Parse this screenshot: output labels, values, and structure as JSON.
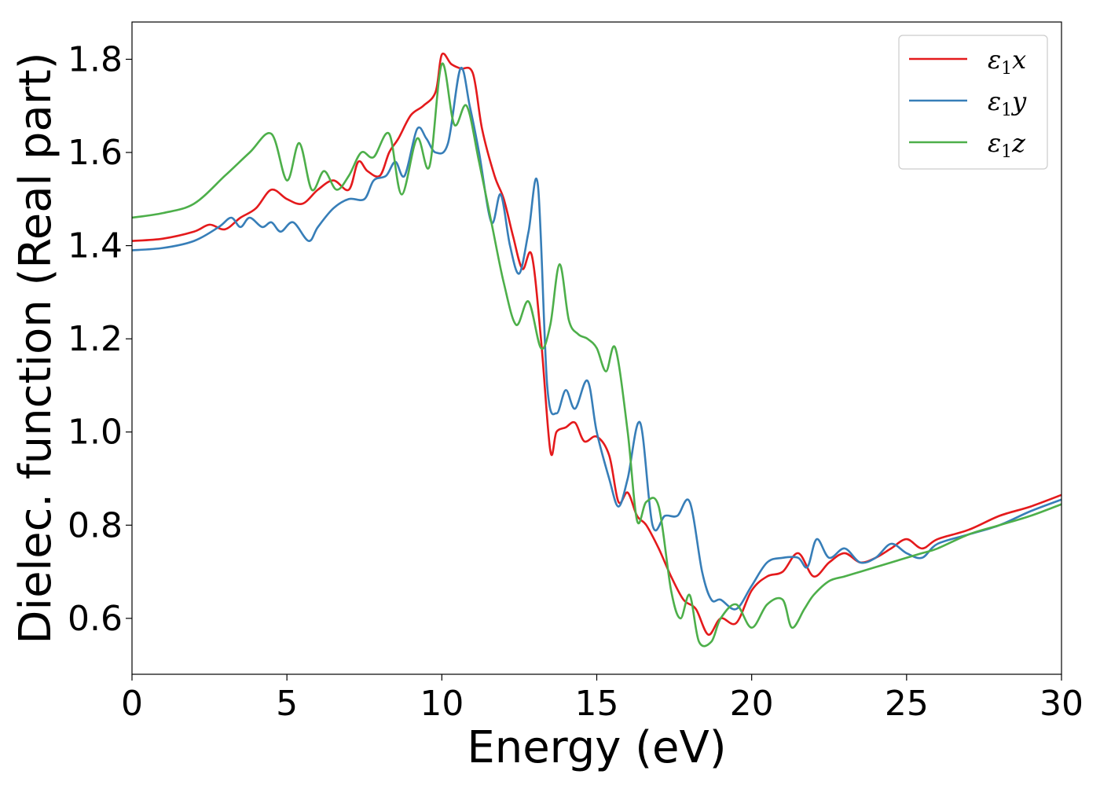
{
  "chart_data": {
    "type": "line",
    "xlabel": "Energy (eV)",
    "ylabel": "Dielec. function (Real part)",
    "xlim": [
      0,
      30
    ],
    "ylim": [
      0.48,
      1.88
    ],
    "xticks": [
      0,
      5,
      10,
      15,
      20,
      25,
      30
    ],
    "xtick_labels": [
      "0",
      "5",
      "10",
      "15",
      "20",
      "25",
      "30"
    ],
    "yticks": [
      0.6,
      0.8,
      1.0,
      1.2,
      1.4,
      1.6,
      1.8
    ],
    "ytick_labels": [
      "0.6",
      "0.8",
      "1.0",
      "1.2",
      "1.4",
      "1.6",
      "1.8"
    ],
    "grid": false,
    "legend_position": "top-right",
    "series": [
      {
        "name": "ε₁x",
        "legend_main": "ε",
        "legend_sub": "1",
        "legend_suffix": "x",
        "color": "#e41a1c",
        "points": [
          [
            0,
            1.41
          ],
          [
            1,
            1.415
          ],
          [
            2,
            1.43
          ],
          [
            2.5,
            1.445
          ],
          [
            3,
            1.435
          ],
          [
            3.5,
            1.46
          ],
          [
            4,
            1.48
          ],
          [
            4.5,
            1.52
          ],
          [
            5,
            1.5
          ],
          [
            5.5,
            1.49
          ],
          [
            6,
            1.52
          ],
          [
            6.5,
            1.54
          ],
          [
            7,
            1.52
          ],
          [
            7.3,
            1.58
          ],
          [
            7.6,
            1.56
          ],
          [
            8,
            1.55
          ],
          [
            8.3,
            1.6
          ],
          [
            8.6,
            1.63
          ],
          [
            9,
            1.68
          ],
          [
            9.4,
            1.7
          ],
          [
            9.8,
            1.73
          ],
          [
            10,
            1.81
          ],
          [
            10.3,
            1.79
          ],
          [
            10.6,
            1.78
          ],
          [
            11,
            1.77
          ],
          [
            11.3,
            1.65
          ],
          [
            11.7,
            1.55
          ],
          [
            12,
            1.5
          ],
          [
            12.3,
            1.42
          ],
          [
            12.6,
            1.35
          ],
          [
            12.9,
            1.38
          ],
          [
            13.2,
            1.2
          ],
          [
            13.5,
            0.96
          ],
          [
            13.7,
            1.0
          ],
          [
            14,
            1.01
          ],
          [
            14.3,
            1.02
          ],
          [
            14.6,
            0.98
          ],
          [
            15,
            0.99
          ],
          [
            15.4,
            0.95
          ],
          [
            15.7,
            0.85
          ],
          [
            16,
            0.87
          ],
          [
            16.3,
            0.82
          ],
          [
            16.6,
            0.8
          ],
          [
            17,
            0.75
          ],
          [
            17.4,
            0.69
          ],
          [
            17.8,
            0.64
          ],
          [
            18.2,
            0.62
          ],
          [
            18.6,
            0.565
          ],
          [
            19,
            0.6
          ],
          [
            19.5,
            0.59
          ],
          [
            20,
            0.66
          ],
          [
            20.5,
            0.69
          ],
          [
            21,
            0.7
          ],
          [
            21.5,
            0.74
          ],
          [
            22,
            0.69
          ],
          [
            22.5,
            0.72
          ],
          [
            23,
            0.74
          ],
          [
            23.5,
            0.72
          ],
          [
            24,
            0.73
          ],
          [
            24.5,
            0.75
          ],
          [
            25,
            0.77
          ],
          [
            25.5,
            0.75
          ],
          [
            26,
            0.77
          ],
          [
            27,
            0.79
          ],
          [
            28,
            0.82
          ],
          [
            29,
            0.84
          ],
          [
            30,
            0.865
          ]
        ]
      },
      {
        "name": "ε₁y",
        "legend_main": "ε",
        "legend_sub": "1",
        "legend_suffix": "y",
        "color": "#377eb8",
        "points": [
          [
            0,
            1.39
          ],
          [
            1,
            1.395
          ],
          [
            2,
            1.41
          ],
          [
            2.8,
            1.44
          ],
          [
            3.2,
            1.46
          ],
          [
            3.5,
            1.44
          ],
          [
            3.8,
            1.46
          ],
          [
            4.2,
            1.44
          ],
          [
            4.5,
            1.45
          ],
          [
            4.8,
            1.43
          ],
          [
            5.2,
            1.45
          ],
          [
            5.7,
            1.41
          ],
          [
            6,
            1.44
          ],
          [
            6.5,
            1.48
          ],
          [
            7,
            1.5
          ],
          [
            7.5,
            1.5
          ],
          [
            7.8,
            1.54
          ],
          [
            8.2,
            1.55
          ],
          [
            8.5,
            1.58
          ],
          [
            8.8,
            1.55
          ],
          [
            9.2,
            1.65
          ],
          [
            9.5,
            1.63
          ],
          [
            9.8,
            1.6
          ],
          [
            10.2,
            1.62
          ],
          [
            10.6,
            1.78
          ],
          [
            10.9,
            1.7
          ],
          [
            11.2,
            1.6
          ],
          [
            11.6,
            1.45
          ],
          [
            11.9,
            1.51
          ],
          [
            12.2,
            1.4
          ],
          [
            12.5,
            1.34
          ],
          [
            12.8,
            1.43
          ],
          [
            13.1,
            1.53
          ],
          [
            13.4,
            1.1
          ],
          [
            13.7,
            1.04
          ],
          [
            14,
            1.09
          ],
          [
            14.3,
            1.05
          ],
          [
            14.7,
            1.11
          ],
          [
            15,
            1.0
          ],
          [
            15.4,
            0.9
          ],
          [
            15.7,
            0.84
          ],
          [
            16,
            0.9
          ],
          [
            16.4,
            1.02
          ],
          [
            16.8,
            0.8
          ],
          [
            17.2,
            0.82
          ],
          [
            17.6,
            0.82
          ],
          [
            18,
            0.85
          ],
          [
            18.4,
            0.7
          ],
          [
            18.7,
            0.64
          ],
          [
            19,
            0.64
          ],
          [
            19.5,
            0.62
          ],
          [
            20,
            0.67
          ],
          [
            20.5,
            0.72
          ],
          [
            21,
            0.73
          ],
          [
            21.5,
            0.73
          ],
          [
            21.8,
            0.71
          ],
          [
            22.1,
            0.77
          ],
          [
            22.5,
            0.73
          ],
          [
            23,
            0.75
          ],
          [
            23.5,
            0.72
          ],
          [
            24,
            0.73
          ],
          [
            24.5,
            0.76
          ],
          [
            25,
            0.74
          ],
          [
            25.5,
            0.73
          ],
          [
            26,
            0.76
          ],
          [
            27,
            0.78
          ],
          [
            28,
            0.8
          ],
          [
            29,
            0.83
          ],
          [
            30,
            0.855
          ]
        ]
      },
      {
        "name": "ε₁z",
        "legend_main": "ε",
        "legend_sub": "1",
        "legend_suffix": "z",
        "color": "#4daf4a",
        "points": [
          [
            0,
            1.46
          ],
          [
            1,
            1.47
          ],
          [
            2,
            1.49
          ],
          [
            3,
            1.55
          ],
          [
            3.8,
            1.6
          ],
          [
            4.5,
            1.64
          ],
          [
            5,
            1.54
          ],
          [
            5.4,
            1.62
          ],
          [
            5.8,
            1.52
          ],
          [
            6.2,
            1.56
          ],
          [
            6.6,
            1.52
          ],
          [
            7,
            1.55
          ],
          [
            7.4,
            1.6
          ],
          [
            7.8,
            1.59
          ],
          [
            8.3,
            1.64
          ],
          [
            8.7,
            1.51
          ],
          [
            9.2,
            1.63
          ],
          [
            9.6,
            1.57
          ],
          [
            10,
            1.79
          ],
          [
            10.4,
            1.66
          ],
          [
            10.8,
            1.7
          ],
          [
            11.2,
            1.58
          ],
          [
            11.6,
            1.45
          ],
          [
            12,
            1.32
          ],
          [
            12.4,
            1.23
          ],
          [
            12.8,
            1.28
          ],
          [
            13.2,
            1.18
          ],
          [
            13.5,
            1.23
          ],
          [
            13.8,
            1.36
          ],
          [
            14.1,
            1.24
          ],
          [
            14.4,
            1.21
          ],
          [
            14.7,
            1.2
          ],
          [
            15,
            1.18
          ],
          [
            15.3,
            1.13
          ],
          [
            15.6,
            1.18
          ],
          [
            16,
            1.0
          ],
          [
            16.3,
            0.81
          ],
          [
            16.6,
            0.85
          ],
          [
            17,
            0.84
          ],
          [
            17.4,
            0.66
          ],
          [
            17.7,
            0.6
          ],
          [
            18,
            0.65
          ],
          [
            18.3,
            0.55
          ],
          [
            18.7,
            0.55
          ],
          [
            19,
            0.6
          ],
          [
            19.5,
            0.63
          ],
          [
            20,
            0.58
          ],
          [
            20.5,
            0.63
          ],
          [
            21,
            0.64
          ],
          [
            21.3,
            0.58
          ],
          [
            21.7,
            0.62
          ],
          [
            22,
            0.65
          ],
          [
            22.5,
            0.68
          ],
          [
            23,
            0.69
          ],
          [
            23.5,
            0.7
          ],
          [
            24,
            0.71
          ],
          [
            24.5,
            0.72
          ],
          [
            25,
            0.73
          ],
          [
            25.5,
            0.74
          ],
          [
            26,
            0.75
          ],
          [
            27,
            0.78
          ],
          [
            28,
            0.8
          ],
          [
            29,
            0.82
          ],
          [
            30,
            0.845
          ]
        ]
      }
    ]
  }
}
